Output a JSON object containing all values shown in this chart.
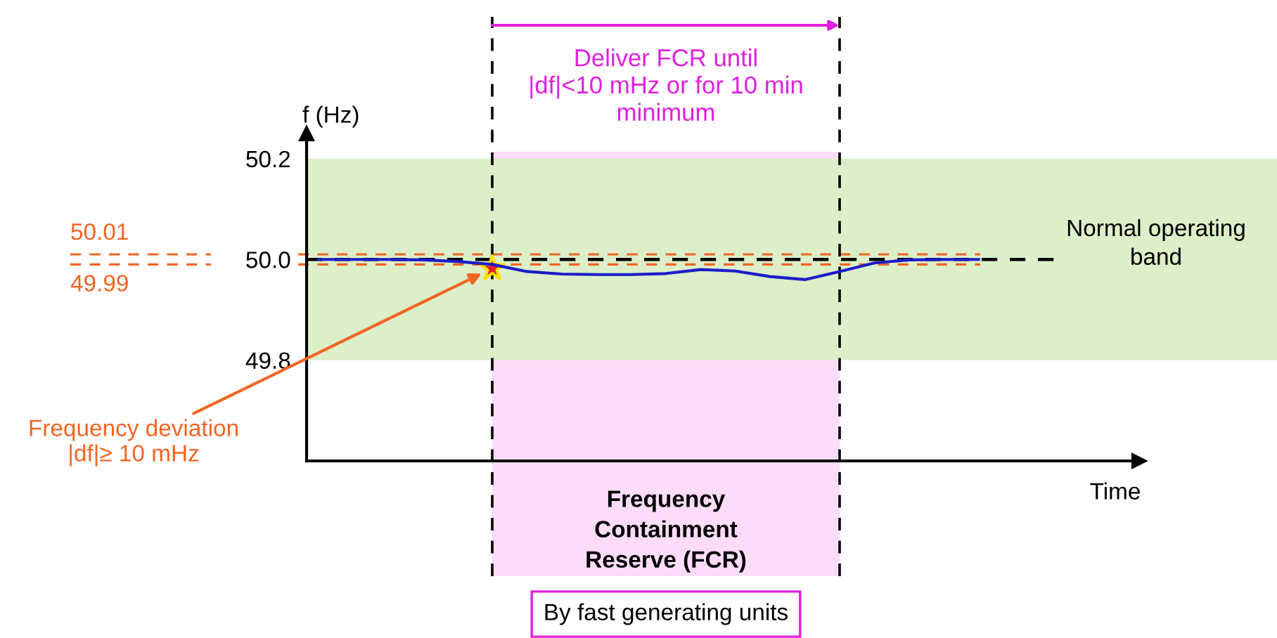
{
  "chart_data": {
    "type": "line",
    "ylabel": "f (Hz)",
    "xlabel": "Time",
    "ylim": [
      49.6,
      50.25
    ],
    "categories": [
      null,
      null,
      null,
      null,
      null,
      null,
      null,
      null,
      null,
      null,
      null,
      null,
      null,
      null,
      null,
      null,
      null,
      null,
      null,
      null
    ],
    "yticks": [
      {
        "value": 49.8,
        "label": "49.8"
      },
      {
        "value": 50.0,
        "label": "50.0"
      },
      {
        "value": 50.2,
        "label": "50.2"
      }
    ],
    "tick_labels": "y",
    "grid": false,
    "legend": false,
    "series": [
      {
        "color": "#1c1cc8",
        "line_style": "solid",
        "marker": "none",
        "values": [
          50.0,
          50.0,
          50.0,
          49.999,
          49.996,
          49.99,
          49.976,
          49.971,
          49.97,
          49.97,
          49.972,
          49.98,
          49.977,
          49.966,
          49.96,
          49.976,
          49.993,
          49.999,
          50.0,
          50.0
        ]
      }
    ],
    "ref_lines": [
      {
        "axis": "y",
        "value": 50.0,
        "color": "#000000",
        "line_style": "dashed"
      },
      {
        "axis": "y",
        "value": 50.01,
        "label": "50.01",
        "color": "#f26522",
        "line_style": "dashed"
      },
      {
        "axis": "y",
        "value": 49.99,
        "label": "49.99",
        "color": "#f26522",
        "line_style": "dashed"
      }
    ],
    "bands": [
      {
        "axis": "y",
        "from": 49.8,
        "to": 50.2,
        "label": "Normal operating\nband",
        "color": "#dcefc9"
      }
    ],
    "annotations": [
      "Frequency deviation\n|df|≥ 10 mHz",
      "Deliver FCR until\n|df|<10 mHz or for 10 min\nminimum",
      "Frequency\nContainment\nReserve (FCR)",
      "By fast generating units"
    ]
  }
}
